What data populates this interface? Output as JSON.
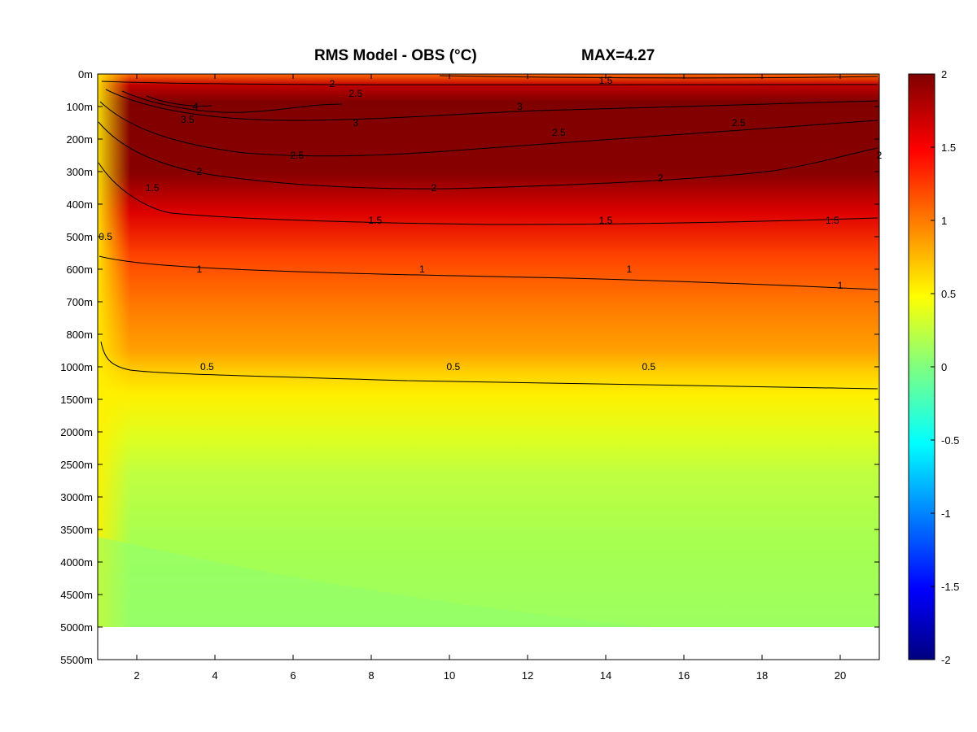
{
  "title": {
    "main": "RMS Model - OBS (°C)",
    "max": "MAX=4.27"
  },
  "chart_data": {
    "type": "heatmap",
    "title": "RMS Model - OBS (°C)",
    "annotation": "MAX=4.27",
    "x_ticks": [
      "2",
      "4",
      "6",
      "8",
      "10",
      "12",
      "14",
      "16",
      "18",
      "20"
    ],
    "x_range": [
      1,
      21
    ],
    "y_ticks": [
      "0m",
      "100m",
      "200m",
      "300m",
      "400m",
      "500m",
      "600m",
      "700m",
      "800m",
      "1000m",
      "1500m",
      "2000m",
      "2500m",
      "3000m",
      "3500m",
      "4000m",
      "4500m",
      "5000m",
      "5500m"
    ],
    "y_axis_nonlinear": true,
    "colorbar": {
      "range": [
        -2,
        2
      ],
      "ticks": [
        "2",
        "1.5",
        "1",
        "0.5",
        "0",
        "-0.5",
        "-1",
        "-1.5",
        "-2"
      ],
      "colormap": "jet"
    },
    "profile": {
      "depths": [
        "0m",
        "100m",
        "200m",
        "300m",
        "400m",
        "500m",
        "600m",
        "700m",
        "800m",
        "1000m",
        "1500m",
        "2000m",
        "2500m",
        "3000m",
        "3500m",
        "4000m",
        "4500m",
        "5000m"
      ],
      "rms_approx": [
        1.6,
        3.0,
        2.6,
        2.2,
        1.7,
        1.35,
        1.1,
        0.9,
        0.75,
        0.5,
        0.35,
        0.3,
        0.25,
        0.25,
        0.22,
        0.2,
        0.18,
        0.15
      ]
    },
    "contour_levels": [
      "0.5",
      "1",
      "1.5",
      "2",
      "2.5",
      "3",
      "3.5",
      "4"
    ],
    "contour_labels": [
      {
        "text": "0.5",
        "x": 3.8,
        "depth": "1000m"
      },
      {
        "text": "0.5",
        "x": 10.1,
        "depth": "1000m"
      },
      {
        "text": "0.5",
        "x": 15.1,
        "depth": "1000m"
      },
      {
        "text": "0.5",
        "x": 1.2,
        "depth": "500m"
      },
      {
        "text": "1",
        "x": 3.6,
        "depth": "600m"
      },
      {
        "text": "1",
        "x": 9.3,
        "depth": "600m"
      },
      {
        "text": "1",
        "x": 14.6,
        "depth": "600m"
      },
      {
        "text": "1",
        "x": 20.0,
        "depth": "650m"
      },
      {
        "text": "1.5",
        "x": 2.4,
        "depth": "350m"
      },
      {
        "text": "1.5",
        "x": 8.1,
        "depth": "450m"
      },
      {
        "text": "1.5",
        "x": 14.0,
        "depth": "450m"
      },
      {
        "text": "1.5",
        "x": 19.8,
        "depth": "450m"
      },
      {
        "text": "2",
        "x": 3.6,
        "depth": "300m"
      },
      {
        "text": "2",
        "x": 9.6,
        "depth": "350m"
      },
      {
        "text": "2",
        "x": 15.4,
        "depth": "320m"
      },
      {
        "text": "2",
        "x": 21.0,
        "depth": "250m"
      },
      {
        "text": "2.5",
        "x": 6.1,
        "depth": "250m"
      },
      {
        "text": "2.5",
        "x": 12.8,
        "depth": "180m"
      },
      {
        "text": "2.5",
        "x": 17.4,
        "depth": "150m"
      },
      {
        "text": "3",
        "x": 7.6,
        "depth": "150m"
      },
      {
        "text": "3.5",
        "x": 3.3,
        "depth": "140m"
      },
      {
        "text": "4",
        "x": 3.5,
        "depth": "100m"
      },
      {
        "text": "1.5",
        "x": 14.0,
        "depth": "20m"
      },
      {
        "text": "2",
        "x": 7.0,
        "depth": "30m"
      },
      {
        "text": "2.5",
        "x": 7.6,
        "depth": "60m"
      },
      {
        "text": "3",
        "x": 11.8,
        "depth": "100m"
      }
    ]
  }
}
